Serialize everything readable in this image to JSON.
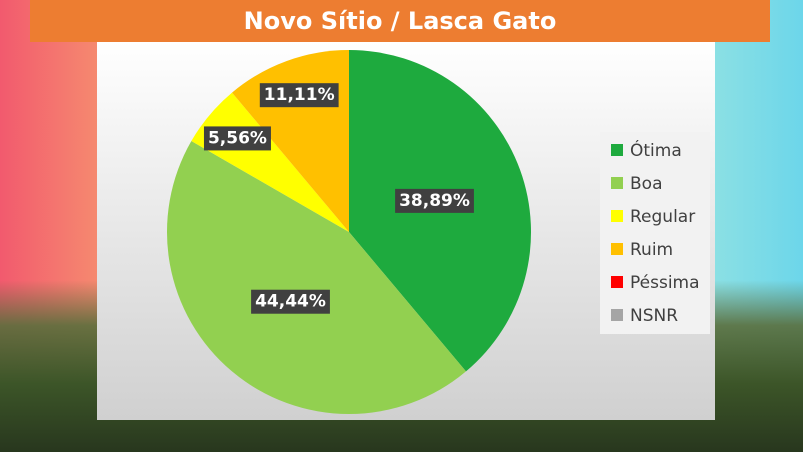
{
  "chart_data": {
    "type": "pie",
    "title": "Novo Sítio / Lasca Gato",
    "categories": [
      "Ótima",
      "Boa",
      "Regular",
      "Ruim",
      "Péssima",
      "NSNR"
    ],
    "values": [
      38.89,
      44.44,
      5.56,
      11.11,
      0,
      0
    ],
    "value_labels": [
      "38,89%",
      "44,44%",
      "5,56%",
      "11,11%",
      null,
      null
    ],
    "colors": [
      "#1eaa3e",
      "#92d050",
      "#ffff00",
      "#ffc000",
      "#ff0000",
      "#a5a5a5"
    ],
    "legend": "right"
  }
}
